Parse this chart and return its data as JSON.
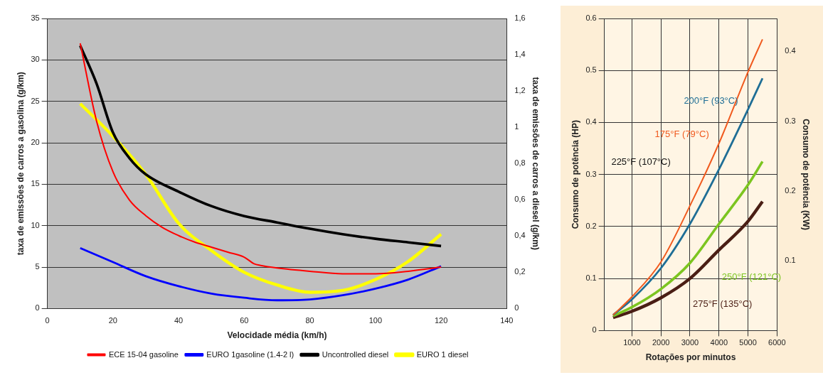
{
  "chart_data": [
    {
      "type": "line",
      "xlabel": "Velocidade média (km/h)",
      "ylabel": "taxa de emissões de carros a gasolina (g/km)",
      "y2label": "taxa de emissões de carros a diesel (g/km)",
      "x": [
        10,
        15,
        20,
        25,
        30,
        35,
        40,
        45,
        50,
        55,
        60,
        63,
        65,
        70,
        80,
        90,
        100,
        110,
        120
      ],
      "xlim": [
        0,
        140
      ],
      "xticks": [
        0,
        20,
        40,
        60,
        80,
        100,
        120,
        140
      ],
      "ylim": [
        0,
        35
      ],
      "yticks": [
        0,
        5,
        10,
        15,
        20,
        25,
        30,
        35
      ],
      "y2lim": [
        0,
        1.6
      ],
      "y2ticks": [
        0,
        {
          "value": 0.2,
          "label": "0,2"
        },
        {
          "value": 0.4,
          "label": "0,4"
        },
        {
          "value": 0.6,
          "label": "0,6"
        },
        {
          "value": 0.8,
          "label": "0,8"
        },
        1,
        {
          "value": 1.2,
          "label": "1,2"
        },
        {
          "value": 1.4,
          "label": "1,4"
        },
        {
          "value": 1.6,
          "label": "1,6"
        }
      ],
      "grid": "y",
      "legend": "bottom",
      "marker": "none",
      "line_style": "solid",
      "series": [
        {
          "name": "ECE 15-04 gasoline",
          "color": "#ff0000",
          "values": [
            32,
            22.6,
            16.5,
            13.1,
            11.2,
            9.8,
            8.8,
            8.0,
            7.4,
            6.8,
            6.2,
            5.4,
            5.2,
            4.9,
            4.5,
            4.2,
            4.2,
            4.5,
            5.0
          ]
        },
        {
          "name": "EURO 1gasoline (1.4-2 l)",
          "color": "#0000ff",
          "x": [
            10,
            20,
            30,
            40,
            50,
            60,
            70,
            80,
            90,
            100,
            110,
            120
          ],
          "values": [
            7.3,
            5.6,
            3.9,
            2.7,
            1.8,
            1.3,
            1.0,
            1.1,
            1.6,
            2.4,
            3.5,
            5.1
          ]
        },
        {
          "name": "Uncontrolled diesel",
          "color": "#000000",
          "axis": "y2",
          "x": [
            10,
            15,
            20,
            25,
            30,
            40,
            50,
            60,
            70,
            80,
            90,
            100,
            110,
            120
          ],
          "values": [
            1.45,
            1.24,
            0.97,
            0.83,
            0.74,
            0.645,
            0.565,
            0.51,
            0.475,
            0.44,
            0.41,
            0.385,
            0.365,
            0.345
          ]
        },
        {
          "name": "EURO 1 diesel",
          "color": "#ffff00",
          "axis": "y2",
          "x": [
            10,
            20,
            30,
            40,
            50,
            60,
            70,
            80,
            90,
            100,
            110,
            120
          ],
          "values": [
            1.13,
            0.95,
            0.74,
            0.47,
            0.32,
            0.2,
            0.13,
            0.09,
            0.1,
            0.16,
            0.26,
            0.41
          ]
        }
      ]
    },
    {
      "type": "line",
      "xlabel": "Rotações por minutos",
      "ylabel": "Consumo de potência (HP)",
      "y2label": "Consumo de potência (KW)",
      "x": [
        350,
        1000,
        2000,
        3000,
        4000,
        5000,
        5500
      ],
      "xlim": [
        50,
        6000
      ],
      "xticks": [
        1000,
        2000,
        3000,
        4000,
        5000,
        6000
      ],
      "ylim": [
        0,
        0.6
      ],
      "yticks": [
        0,
        0.1,
        0.2,
        0.3,
        0.4,
        0.5,
        0.6
      ],
      "y2lim": [
        0,
        0.447
      ],
      "y2ticks": [
        0.1,
        0.2,
        0.3,
        0.4
      ],
      "grid": true,
      "marker": "none",
      "line_style": "solid",
      "annotations": [
        "225°F (107°C)"
      ],
      "series": [
        {
          "name": "175°F (79°C)",
          "color": "#f05a1e",
          "values": [
            0.03,
            0.065,
            0.132,
            0.24,
            0.36,
            0.497,
            0.56
          ]
        },
        {
          "name": "200°F (93°C)",
          "color": "#1f6e96",
          "values": [
            0.03,
            0.06,
            0.12,
            0.205,
            0.31,
            0.425,
            0.485
          ]
        },
        {
          "name": "250°F (121°C)",
          "color": "#7cc520",
          "values": [
            0.028,
            0.045,
            0.08,
            0.13,
            0.205,
            0.28,
            0.325
          ]
        },
        {
          "name": "275°F (135°C)",
          "color": "#4a1e14",
          "values": [
            0.025,
            0.037,
            0.063,
            0.1,
            0.155,
            0.21,
            0.248
          ]
        }
      ]
    }
  ]
}
